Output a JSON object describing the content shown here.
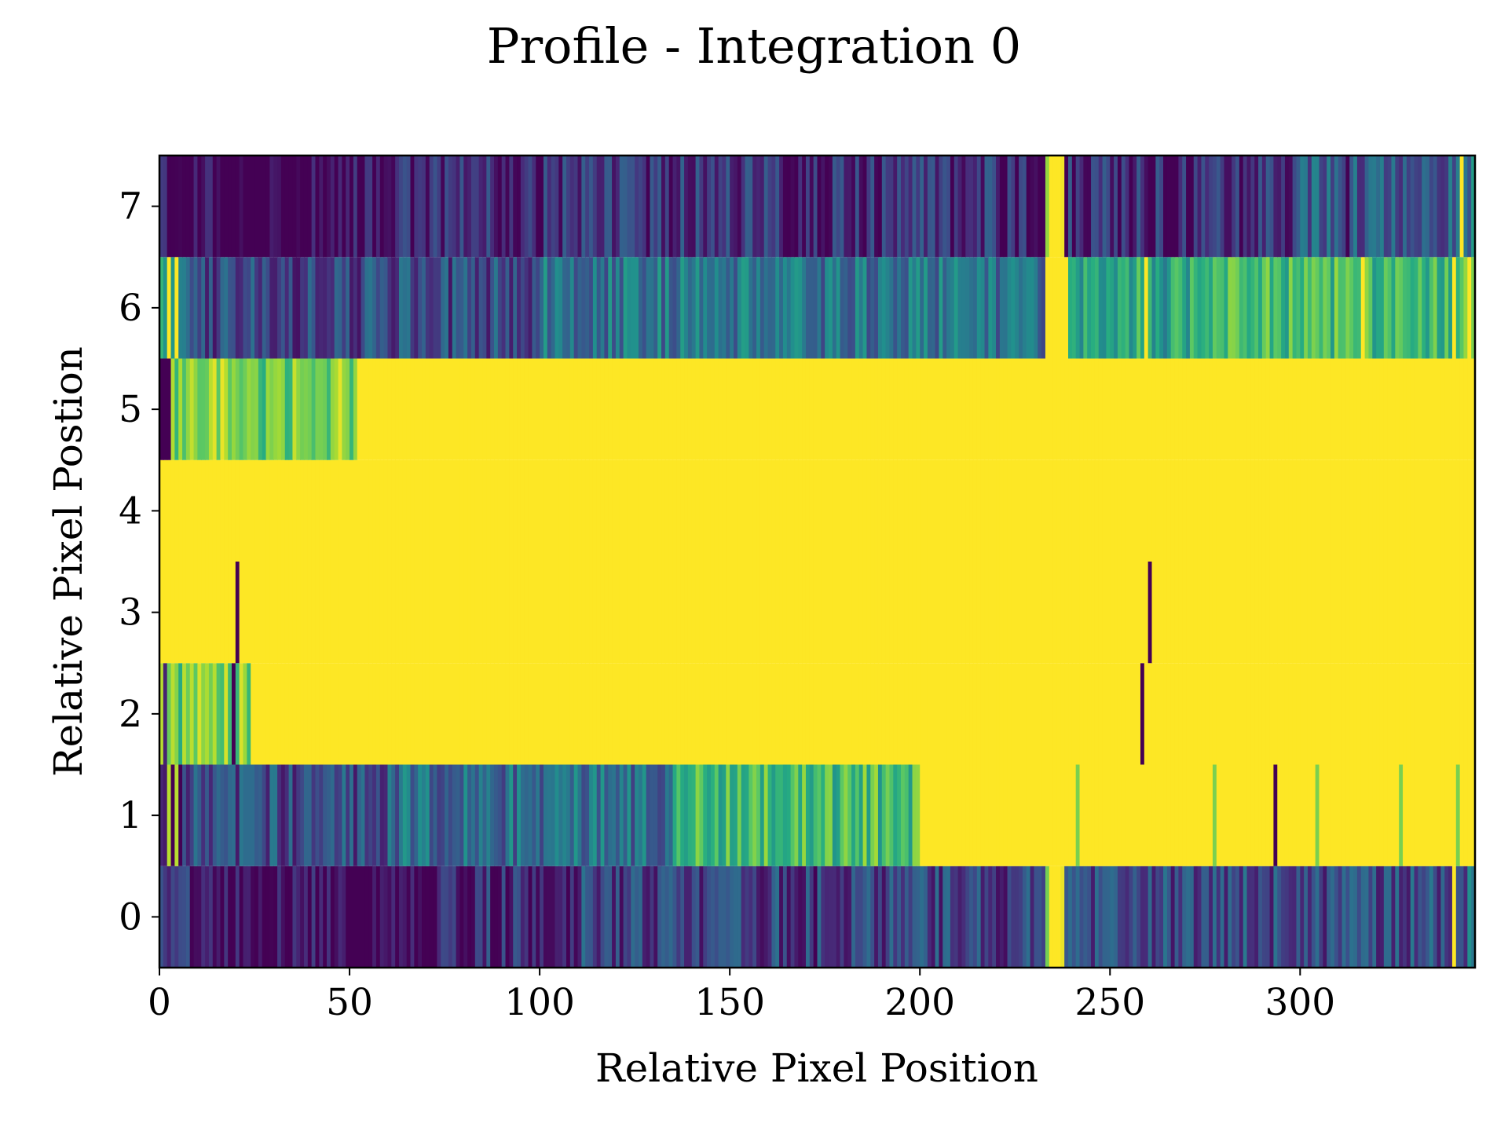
{
  "chart_data": {
    "type": "heatmap",
    "title": "Profile - Integration 0",
    "xlabel": "Relative Pixel Position",
    "ylabel": "Relative Pixel Postion",
    "xlim": [
      0,
      346
    ],
    "ylim": [
      -0.5,
      7.5
    ],
    "x_ticks": [
      "0",
      "50",
      "100",
      "150",
      "200",
      "250",
      "300"
    ],
    "x_tick_values": [
      0,
      50,
      100,
      150,
      200,
      250,
      300
    ],
    "y_ticks": [
      "0",
      "1",
      "2",
      "3",
      "4",
      "5",
      "6",
      "7"
    ],
    "y_tick_values": [
      0,
      1,
      2,
      3,
      4,
      5,
      6,
      7
    ],
    "colormap": "viridis",
    "value_range": [
      0,
      1
    ],
    "n_columns": 346,
    "grid": false,
    "colors": {
      "viridis_low": "#440154",
      "viridis_mid": "#21918c",
      "viridis_high": "#fde725"
    },
    "rows": [
      {
        "y": 0,
        "description_level": 0.26,
        "segments": [
          {
            "x": [
              0,
              8
            ],
            "v": 0.35
          },
          {
            "x": [
              8,
              70
            ],
            "v": 0.12
          },
          {
            "x": [
              70,
              110
            ],
            "v": 0.22
          },
          {
            "x": [
              110,
              233
            ],
            "v": 0.3
          },
          {
            "x": [
              233,
              238
            ],
            "v": 0.95
          },
          {
            "x": [
              238,
              346
            ],
            "v": 0.33
          }
        ],
        "spikes": [
          {
            "x": 69,
            "v": 0.0
          },
          {
            "x": 70,
            "v": 0.0
          },
          {
            "x": 172,
            "v": 0.0
          },
          {
            "x": 234,
            "v": 1.0
          },
          {
            "x": 235,
            "v": 1.0
          },
          {
            "x": 236,
            "v": 1.0
          },
          {
            "x": 340,
            "v": 1.0
          },
          {
            "x": 344,
            "v": 0.5
          }
        ]
      },
      {
        "y": 1,
        "description_level": 0.6,
        "segments": [
          {
            "x": [
              0,
              6
            ],
            "v": 0.05
          },
          {
            "x": [
              6,
              60
            ],
            "v": 0.33
          },
          {
            "x": [
              60,
              135
            ],
            "v": 0.45
          },
          {
            "x": [
              135,
              200
            ],
            "v": 0.78
          },
          {
            "x": [
              200,
              346
            ],
            "v": 1.0
          }
        ],
        "spikes": [
          {
            "x": 2,
            "v": 0.9
          },
          {
            "x": 4,
            "v": 0.9
          },
          {
            "x": 293,
            "v": 0.0
          },
          {
            "x": 241,
            "v": 0.8
          },
          {
            "x": 277,
            "v": 0.8
          },
          {
            "x": 304,
            "v": 0.8
          },
          {
            "x": 326,
            "v": 0.8
          },
          {
            "x": 341,
            "v": 0.8
          }
        ]
      },
      {
        "y": 2,
        "description_level": 1.0,
        "segments": [
          {
            "x": [
              0,
              24
            ],
            "v": 0.88
          },
          {
            "x": [
              24,
              346
            ],
            "v": 1.0
          }
        ],
        "spikes": [
          {
            "x": 1,
            "v": 0.1
          },
          {
            "x": 19,
            "v": 0.0
          },
          {
            "x": 258,
            "v": 0.0
          }
        ]
      },
      {
        "y": 3,
        "description_level": 1.0,
        "segments": [
          {
            "x": [
              0,
              346
            ],
            "v": 1.0
          }
        ],
        "spikes": [
          {
            "x": 20,
            "v": 0.0
          },
          {
            "x": 260,
            "v": 0.0
          }
        ]
      },
      {
        "y": 4,
        "description_level": 1.0,
        "segments": [
          {
            "x": [
              0,
              346
            ],
            "v": 1.0
          }
        ],
        "spikes": []
      },
      {
        "y": 5,
        "description_level": 1.0,
        "segments": [
          {
            "x": [
              0,
              3
            ],
            "v": 0.1
          },
          {
            "x": [
              3,
              52
            ],
            "v": 0.88
          },
          {
            "x": [
              52,
              346
            ],
            "v": 1.0
          }
        ],
        "spikes": []
      },
      {
        "y": 6,
        "description_level": 0.45,
        "segments": [
          {
            "x": [
              0,
              8
            ],
            "v": 0.6
          },
          {
            "x": [
              8,
              100
            ],
            "v": 0.32
          },
          {
            "x": [
              100,
              233
            ],
            "v": 0.48
          },
          {
            "x": [
              233,
              239
            ],
            "v": 1.0
          },
          {
            "x": [
              239,
              280
            ],
            "v": 0.68
          },
          {
            "x": [
              280,
              346
            ],
            "v": 0.76
          }
        ],
        "spikes": [
          {
            "x": 2,
            "v": 1.0
          },
          {
            "x": 4,
            "v": 1.0
          },
          {
            "x": 259,
            "v": 1.0
          },
          {
            "x": 316,
            "v": 1.0
          },
          {
            "x": 340,
            "v": 1.0
          },
          {
            "x": 344,
            "v": 1.0
          }
        ]
      },
      {
        "y": 7,
        "description_level": 0.18,
        "segments": [
          {
            "x": [
              0,
              60
            ],
            "v": 0.1
          },
          {
            "x": [
              60,
              100
            ],
            "v": 0.2
          },
          {
            "x": [
              100,
              220
            ],
            "v": 0.24
          },
          {
            "x": [
              220,
              233
            ],
            "v": 0.16
          },
          {
            "x": [
              233,
              238
            ],
            "v": 0.95
          },
          {
            "x": [
              238,
              300
            ],
            "v": 0.22
          },
          {
            "x": [
              300,
              346
            ],
            "v": 0.38
          }
        ],
        "spikes": [
          {
            "x": 312,
            "v": 0.0
          },
          {
            "x": 234,
            "v": 1.0
          },
          {
            "x": 235,
            "v": 1.0
          },
          {
            "x": 236,
            "v": 1.0
          },
          {
            "x": 342,
            "v": 1.0
          },
          {
            "x": 345,
            "v": 0.55
          }
        ]
      }
    ]
  }
}
